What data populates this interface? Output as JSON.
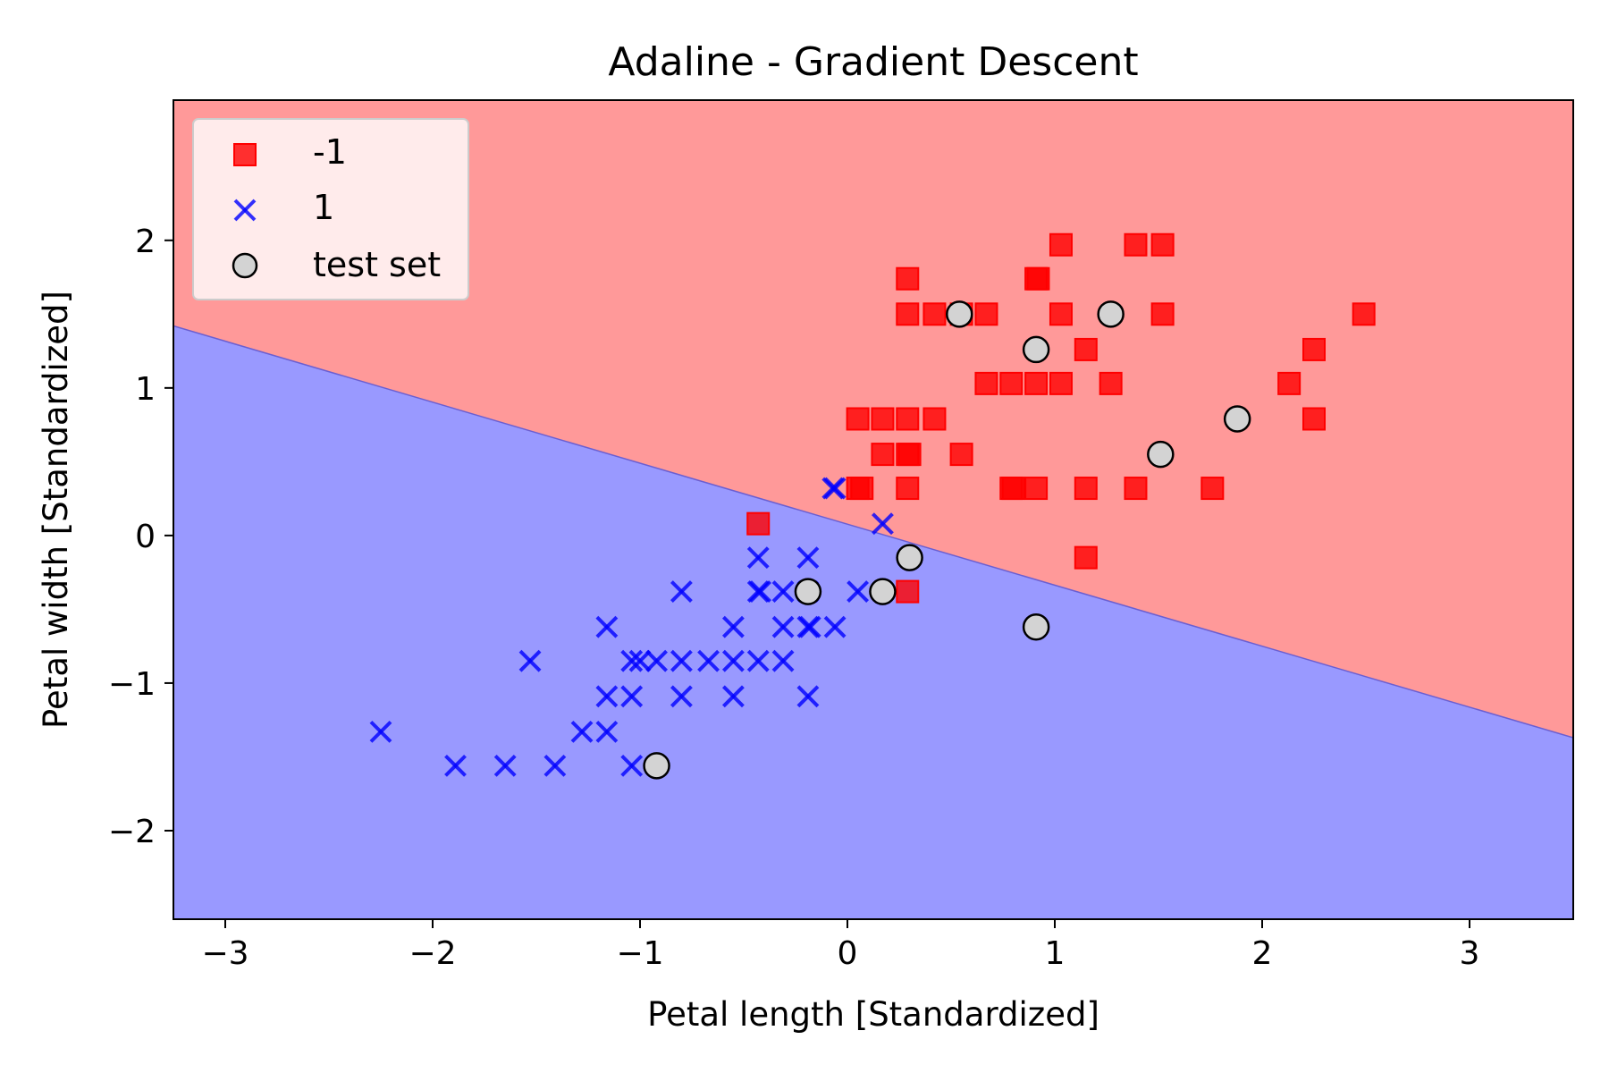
{
  "chart_data": {
    "type": "scatter",
    "title": "Adaline - Gradient Descent",
    "xlabel": "Petal length [Standardized]",
    "ylabel": "Petal width [Standardized]",
    "xlim": [
      -3.25,
      3.5
    ],
    "ylim": [
      -2.6,
      2.95
    ],
    "xticks": [
      -3,
      -2,
      -1,
      0,
      1,
      2,
      3
    ],
    "yticks": [
      -2,
      -1,
      0,
      1,
      2
    ],
    "xtick_labels": [
      "−3",
      "−2",
      "−1",
      "0",
      "1",
      "2",
      "3"
    ],
    "ytick_labels": [
      "−2",
      "−1",
      "0",
      "1",
      "2"
    ],
    "grid": false,
    "legend_position": "upper-left",
    "decision_boundary": {
      "description": "linear boundary separating the two classes",
      "points": [
        [
          -3.25,
          1.42
        ],
        [
          3.5,
          -1.37
        ]
      ],
      "regions": [
        {
          "class": "-1",
          "side": "above",
          "color": "#ff9999"
        },
        {
          "class": "1",
          "side": "below",
          "color": "#9999ff"
        }
      ]
    },
    "series": [
      {
        "name": "-1",
        "marker": "square",
        "color": "#ff0000",
        "points": [
          [
            1.03,
            1.97
          ],
          [
            1.39,
            1.97
          ],
          [
            1.52,
            1.97
          ],
          [
            0.29,
            1.74
          ],
          [
            0.91,
            1.74
          ],
          [
            0.92,
            1.74
          ],
          [
            0.29,
            1.5
          ],
          [
            0.42,
            1.5
          ],
          [
            0.55,
            1.5
          ],
          [
            0.67,
            1.5
          ],
          [
            1.03,
            1.5
          ],
          [
            1.52,
            1.5
          ],
          [
            2.49,
            1.5
          ],
          [
            1.15,
            1.26
          ],
          [
            2.25,
            1.26
          ],
          [
            0.67,
            1.03
          ],
          [
            0.79,
            1.03
          ],
          [
            0.91,
            1.03
          ],
          [
            1.03,
            1.03
          ],
          [
            1.27,
            1.03
          ],
          [
            2.13,
            1.03
          ],
          [
            0.05,
            0.79
          ],
          [
            0.17,
            0.79
          ],
          [
            0.29,
            0.79
          ],
          [
            0.42,
            0.79
          ],
          [
            2.25,
            0.79
          ],
          [
            0.17,
            0.55
          ],
          [
            0.29,
            0.55
          ],
          [
            0.3,
            0.55
          ],
          [
            0.55,
            0.55
          ],
          [
            0.05,
            0.32
          ],
          [
            0.07,
            0.32
          ],
          [
            0.29,
            0.32
          ],
          [
            0.79,
            0.32
          ],
          [
            0.8,
            0.32
          ],
          [
            0.91,
            0.32
          ],
          [
            1.15,
            0.32
          ],
          [
            1.39,
            0.32
          ],
          [
            1.76,
            0.32
          ],
          [
            -0.43,
            0.08
          ],
          [
            1.15,
            -0.15
          ],
          [
            0.29,
            -0.38
          ]
        ]
      },
      {
        "name": "1",
        "marker": "x",
        "color": "#0000ff",
        "points": [
          [
            -0.07,
            0.32
          ],
          [
            -0.06,
            0.32
          ],
          [
            0.17,
            0.08
          ],
          [
            -0.43,
            -0.15
          ],
          [
            -0.19,
            -0.15
          ],
          [
            -0.8,
            -0.38
          ],
          [
            -0.43,
            -0.38
          ],
          [
            -0.42,
            -0.38
          ],
          [
            -0.31,
            -0.38
          ],
          [
            -0.19,
            -0.38
          ],
          [
            0.05,
            -0.38
          ],
          [
            -1.16,
            -0.62
          ],
          [
            -0.55,
            -0.62
          ],
          [
            -0.31,
            -0.62
          ],
          [
            -0.19,
            -0.62
          ],
          [
            -0.18,
            -0.62
          ],
          [
            -0.06,
            -0.62
          ],
          [
            -1.53,
            -0.85
          ],
          [
            -1.04,
            -0.85
          ],
          [
            -1.0,
            -0.85
          ],
          [
            -0.92,
            -0.85
          ],
          [
            -0.8,
            -0.85
          ],
          [
            -0.67,
            -0.85
          ],
          [
            -0.55,
            -0.85
          ],
          [
            -0.43,
            -0.85
          ],
          [
            -0.31,
            -0.85
          ],
          [
            -1.16,
            -1.09
          ],
          [
            -1.04,
            -1.09
          ],
          [
            -0.8,
            -1.09
          ],
          [
            -0.55,
            -1.09
          ],
          [
            -0.19,
            -1.09
          ],
          [
            -2.25,
            -1.33
          ],
          [
            -1.28,
            -1.33
          ],
          [
            -1.16,
            -1.33
          ],
          [
            -1.89,
            -1.56
          ],
          [
            -1.65,
            -1.56
          ],
          [
            -1.41,
            -1.56
          ],
          [
            -1.04,
            -1.56
          ]
        ]
      },
      {
        "name": "test set",
        "marker": "circle",
        "color": "#d3d3d3",
        "points": [
          [
            0.54,
            1.5
          ],
          [
            1.27,
            1.5
          ],
          [
            0.91,
            1.26
          ],
          [
            1.88,
            0.79
          ],
          [
            1.51,
            0.55
          ],
          [
            0.3,
            -0.15
          ],
          [
            -0.19,
            -0.38
          ],
          [
            0.17,
            -0.38
          ],
          [
            0.91,
            -0.62
          ],
          [
            -0.92,
            -1.56
          ]
        ]
      }
    ]
  }
}
